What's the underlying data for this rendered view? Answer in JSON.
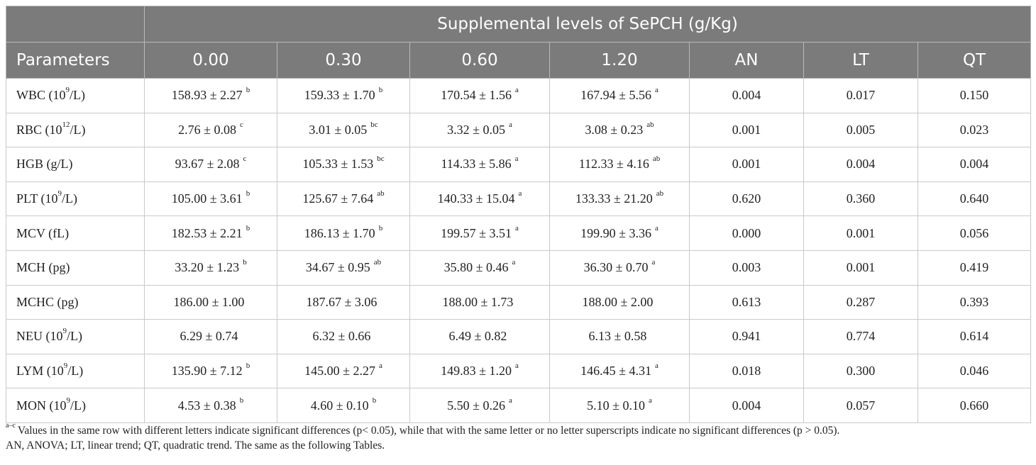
{
  "header": {
    "group_title": "Supplemental levels of SePCH (g/Kg)",
    "columns": [
      "Parameters",
      "0.00",
      "0.30",
      "0.60",
      "1.20",
      "AN",
      "LT",
      "QT"
    ]
  },
  "rows": [
    {
      "name": "WBC (10",
      "unit_sup": "9",
      "unit_tail": "/L)",
      "cells": [
        {
          "v": "158.93 ± 2.27",
          "s": "b"
        },
        {
          "v": "159.33 ± 1.70",
          "s": "b"
        },
        {
          "v": "170.54 ± 1.56",
          "s": "a"
        },
        {
          "v": "167.94 ± 5.56",
          "s": "a"
        }
      ],
      "an": "0.004",
      "lt": "0.017",
      "qt": "0.150"
    },
    {
      "name": "RBC (10",
      "unit_sup": "12",
      "unit_tail": "/L)",
      "cells": [
        {
          "v": "2.76 ± 0.08",
          "s": "c"
        },
        {
          "v": "3.01 ± 0.05",
          "s": "bc"
        },
        {
          "v": "3.32 ± 0.05",
          "s": "a"
        },
        {
          "v": "3.08 ± 0.23",
          "s": "ab"
        }
      ],
      "an": "0.001",
      "lt": "0.005",
      "qt": "0.023"
    },
    {
      "name": "HGB (g/L)",
      "unit_sup": "",
      "unit_tail": "",
      "cells": [
        {
          "v": "93.67 ± 2.08",
          "s": "c"
        },
        {
          "v": "105.33 ± 1.53",
          "s": "bc"
        },
        {
          "v": "114.33 ± 5.86",
          "s": "a"
        },
        {
          "v": "112.33 ± 4.16",
          "s": "ab"
        }
      ],
      "an": "0.001",
      "lt": "0.004",
      "qt": "0.004"
    },
    {
      "name": "PLT (10",
      "unit_sup": "9",
      "unit_tail": "/L)",
      "cells": [
        {
          "v": "105.00 ± 3.61",
          "s": "b"
        },
        {
          "v": "125.67 ± 7.64",
          "s": "ab"
        },
        {
          "v": "140.33 ± 15.04",
          "s": "a"
        },
        {
          "v": "133.33 ± 21.20",
          "s": "ab"
        }
      ],
      "an": "0.620",
      "lt": "0.360",
      "qt": "0.640"
    },
    {
      "name": "MCV (fL)",
      "unit_sup": "",
      "unit_tail": "",
      "cells": [
        {
          "v": "182.53 ± 2.21",
          "s": "b"
        },
        {
          "v": "186.13 ± 1.70",
          "s": "b"
        },
        {
          "v": "199.57 ± 3.51",
          "s": "a"
        },
        {
          "v": "199.90 ± 3.36",
          "s": "a"
        }
      ],
      "an": "0.000",
      "lt": "0.001",
      "qt": "0.056"
    },
    {
      "name": "MCH (pg)",
      "unit_sup": "",
      "unit_tail": "",
      "cells": [
        {
          "v": "33.20 ± 1.23",
          "s": "b"
        },
        {
          "v": "34.67 ± 0.95",
          "s": "ab"
        },
        {
          "v": "35.80 ± 0.46",
          "s": "a"
        },
        {
          "v": "36.30 ± 0.70",
          "s": "a"
        }
      ],
      "an": "0.003",
      "lt": "0.001",
      "qt": "0.419"
    },
    {
      "name": "MCHC (pg)",
      "unit_sup": "",
      "unit_tail": "",
      "cells": [
        {
          "v": "186.00 ± 1.00",
          "s": ""
        },
        {
          "v": "187.67 ± 3.06",
          "s": ""
        },
        {
          "v": "188.00 ± 1.73",
          "s": ""
        },
        {
          "v": "188.00 ± 2.00",
          "s": ""
        }
      ],
      "an": "0.613",
      "lt": "0.287",
      "qt": "0.393"
    },
    {
      "name": "NEU (10",
      "unit_sup": "9",
      "unit_tail": "/L)",
      "cells": [
        {
          "v": "6.29 ± 0.74",
          "s": ""
        },
        {
          "v": "6.32 ± 0.66",
          "s": ""
        },
        {
          "v": "6.49 ± 0.82",
          "s": ""
        },
        {
          "v": "6.13 ± 0.58",
          "s": ""
        }
      ],
      "an": "0.941",
      "lt": "0.774",
      "qt": "0.614"
    },
    {
      "name": "LYM (10",
      "unit_sup": "9",
      "unit_tail": "/L)",
      "cells": [
        {
          "v": "135.90 ± 7.12",
          "s": "b"
        },
        {
          "v": "145.00 ± 2.27",
          "s": "a"
        },
        {
          "v": "149.83 ± 1.20",
          "s": "a"
        },
        {
          "v": "146.45 ± 4.31",
          "s": "a"
        }
      ],
      "an": "0.018",
      "lt": "0.300",
      "qt": "0.046"
    },
    {
      "name": "MON (10",
      "unit_sup": "9",
      "unit_tail": "/L)",
      "cells": [
        {
          "v": "4.53 ± 0.38",
          "s": "b"
        },
        {
          "v": "4.60 ± 0.10",
          "s": "b"
        },
        {
          "v": "5.50 ± 0.26",
          "s": "a"
        },
        {
          "v": "5.10 ± 0.10",
          "s": "a"
        }
      ],
      "an": "0.004",
      "lt": "0.057",
      "qt": "0.660"
    }
  ],
  "footnote": {
    "marker": "a–c",
    "line1": "Values in the same row with different letters indicate significant differences (p< 0.05), while that with the same letter or no letter superscripts indicate no significant differences (p > 0.05).",
    "line2": "AN, ANOVA; LT, linear trend; QT, quadratic trend. The same as the following Tables."
  }
}
